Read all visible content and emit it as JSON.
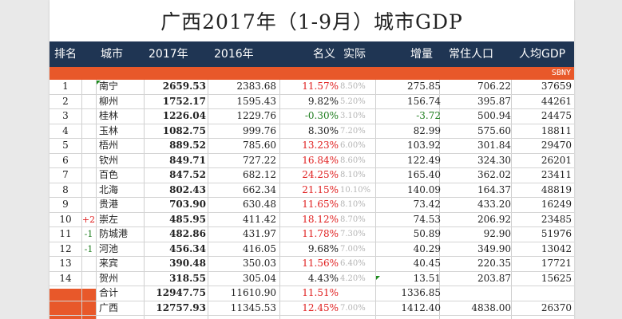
{
  "title": "广西2017年（1-9月）城市GDP",
  "headers": {
    "rank": "排名",
    "city": "城市",
    "y2017": "2017年",
    "y2016": "2016年",
    "nominal": "名义",
    "real": "实际",
    "increase": "增量",
    "population": "常住人口",
    "per_capita": "人均GDP"
  },
  "source": "SBNY",
  "rows": [
    {
      "rank": "1",
      "change": "",
      "city": "南宁",
      "y2017": "2659.53",
      "y2016": "2383.68",
      "nominal": "11.57%",
      "real": "8.50%",
      "increase": "275.85",
      "population": "706.22",
      "per_capita": "37659"
    },
    {
      "rank": "2",
      "change": "",
      "city": "柳州",
      "y2017": "1752.17",
      "y2016": "1595.43",
      "nominal": "9.82%",
      "real": "5.20%",
      "increase": "156.74",
      "population": "395.87",
      "per_capita": "44261"
    },
    {
      "rank": "3",
      "change": "",
      "city": "桂林",
      "y2017": "1226.04",
      "y2016": "1229.76",
      "nominal": "-0.30%",
      "real": "3.10%",
      "increase": "-3.72",
      "population": "500.94",
      "per_capita": "24475"
    },
    {
      "rank": "4",
      "change": "",
      "city": "玉林",
      "y2017": "1082.75",
      "y2016": "999.76",
      "nominal": "8.30%",
      "real": "7.20%",
      "increase": "82.99",
      "population": "575.60",
      "per_capita": "18811"
    },
    {
      "rank": "5",
      "change": "",
      "city": "梧州",
      "y2017": "889.52",
      "y2016": "785.60",
      "nominal": "13.23%",
      "real": "6.00%",
      "increase": "103.92",
      "population": "301.84",
      "per_capita": "29470"
    },
    {
      "rank": "6",
      "change": "",
      "city": "钦州",
      "y2017": "849.71",
      "y2016": "727.22",
      "nominal": "16.84%",
      "real": "8.60%",
      "increase": "122.49",
      "population": "324.30",
      "per_capita": "26201"
    },
    {
      "rank": "7",
      "change": "",
      "city": "百色",
      "y2017": "847.52",
      "y2016": "682.12",
      "nominal": "24.25%",
      "real": "8.10%",
      "increase": "165.40",
      "population": "362.02",
      "per_capita": "23411"
    },
    {
      "rank": "8",
      "change": "",
      "city": "北海",
      "y2017": "802.43",
      "y2016": "662.34",
      "nominal": "21.15%",
      "real": "10.10%",
      "increase": "140.09",
      "population": "164.37",
      "per_capita": "48819"
    },
    {
      "rank": "9",
      "change": "",
      "city": "贵港",
      "y2017": "703.90",
      "y2016": "630.48",
      "nominal": "11.65%",
      "real": "8.10%",
      "increase": "73.42",
      "population": "433.20",
      "per_capita": "16249"
    },
    {
      "rank": "10",
      "change": "+2",
      "city": "崇左",
      "y2017": "485.95",
      "y2016": "411.42",
      "nominal": "18.12%",
      "real": "8.70%",
      "increase": "74.53",
      "population": "206.92",
      "per_capita": "23485"
    },
    {
      "rank": "11",
      "change": "-1",
      "city": "防城港",
      "y2017": "482.86",
      "y2016": "431.97",
      "nominal": "11.78%",
      "real": "7.30%",
      "increase": "50.89",
      "population": "92.90",
      "per_capita": "51976"
    },
    {
      "rank": "12",
      "change": "-1",
      "city": "河池",
      "y2017": "456.34",
      "y2016": "416.05",
      "nominal": "9.68%",
      "real": "7.00%",
      "increase": "40.29",
      "population": "349.90",
      "per_capita": "13042"
    },
    {
      "rank": "13",
      "change": "",
      "city": "来宾",
      "y2017": "390.48",
      "y2016": "350.03",
      "nominal": "11.56%",
      "real": "6.40%",
      "increase": "40.45",
      "population": "220.35",
      "per_capita": "17721"
    },
    {
      "rank": "14",
      "change": "",
      "city": "贺州",
      "y2017": "318.55",
      "y2016": "305.04",
      "nominal": "4.43%",
      "real": "4.20%",
      "increase": "13.51",
      "population": "203.87",
      "per_capita": "15625"
    },
    {
      "rank": "",
      "change": "",
      "city": "合计",
      "y2017": "12947.75",
      "y2016": "11610.90",
      "nominal": "11.51%",
      "real": "",
      "increase": "1336.85",
      "population": "",
      "per_capita": ""
    },
    {
      "rank": "",
      "change": "",
      "city": "广西",
      "y2017": "12757.93",
      "y2016": "11345.53",
      "nominal": "12.45%",
      "real": "7.00%",
      "increase": "1412.40",
      "population": "4838.00",
      "per_capita": "26370"
    }
  ],
  "colors": {
    "header_bg": "#1f3553",
    "accent_band": "#e8582a",
    "positive_red": "#e02020",
    "negative_green": "#1e7d1e",
    "muted_gray": "#b5b5b5"
  }
}
